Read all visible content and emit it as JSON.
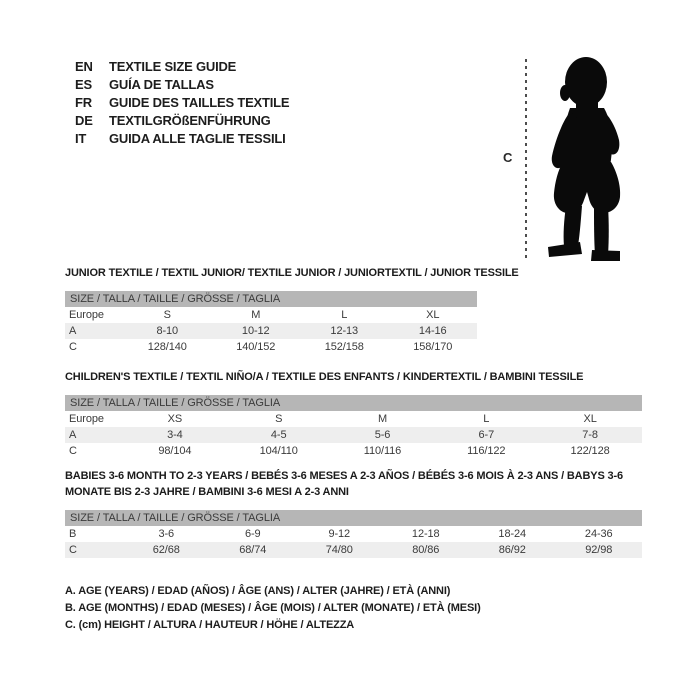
{
  "languages": [
    {
      "code": "EN",
      "label": "TEXTILE SIZE GUIDE"
    },
    {
      "code": "ES",
      "label": "GUÍA DE TALLAS"
    },
    {
      "code": "FR",
      "label": "GUIDE DES TAILLES TEXTILE"
    },
    {
      "code": "DE",
      "label": "TEXTILGRÖßENFÜHRUNG"
    },
    {
      "code": "IT",
      "label": "GUIDA ALLE TAGLIE TESSILI"
    }
  ],
  "figure": {
    "height_label": "C"
  },
  "sections": [
    {
      "title": "JUNIOR TEXTILE / TEXTIL JUNIOR/ TEXTILE JUNIOR / JUNIORTEXTIL / JUNIOR TESSILE",
      "table_header": "SIZE / TALLA / TAILLE / GRÖSSE / TAGLIA",
      "rows": [
        {
          "label": "Europe",
          "values": [
            "S",
            "M",
            "L",
            "XL"
          ],
          "shaded": false
        },
        {
          "label": "A",
          "values": [
            "8-10",
            "10-12",
            "12-13",
            "14-16"
          ],
          "shaded": true
        },
        {
          "label": "C",
          "values": [
            "128/140",
            "140/152",
            "152/158",
            "158/170"
          ],
          "shaded": false
        }
      ]
    },
    {
      "title": "CHILDREN'S TEXTILE / TEXTIL NIÑO/A / TEXTILE DES ENFANTS / KINDERTEXTIL / BAMBINI TESSILE",
      "table_header": "SIZE / TALLA / TAILLE / GRÖSSE / TAGLIA",
      "rows": [
        {
          "label": "Europe",
          "values": [
            "XS",
            "S",
            "M",
            "L",
            "XL"
          ],
          "shaded": false
        },
        {
          "label": "A",
          "values": [
            "3-4",
            "4-5",
            "5-6",
            "6-7",
            "7-8"
          ],
          "shaded": true
        },
        {
          "label": "C",
          "values": [
            "98/104",
            "104/110",
            "110/116",
            "116/122",
            "122/128"
          ],
          "shaded": false
        }
      ]
    },
    {
      "title": "BABIES 3-6 MONTH TO 2-3 YEARS / BEBÉS 3-6 MESES A 2-3 AÑOS / BÉBÉS 3-6 MOIS À 2-3 ANS / BABYS 3-6 MONATE BIS 2-3 JAHRE / BAMBINI 3-6 MESI A 2-3 ANNI",
      "table_header": "SIZE / TALLA / TAILLE / GRÖSSE / TAGLIA",
      "rows": [
        {
          "label": "B",
          "values": [
            "3-6",
            "6-9",
            "9-12",
            "12-18",
            "18-24",
            "24-36"
          ],
          "shaded": false
        },
        {
          "label": "C",
          "values": [
            "62/68",
            "68/74",
            "74/80",
            "80/86",
            "86/92",
            "92/98"
          ],
          "shaded": true
        }
      ]
    }
  ],
  "legend": [
    "A. AGE (YEARS) / EDAD (AÑOS) / ÂGE (ANS) / ALTER (JAHRE) / ETÀ (ANNI)",
    "B. AGE (MONTHS) / EDAD (MESES) / ÂGE (MOIS) / ALTER (MONATE) / ETÀ (MESI)",
    "C. (cm) HEIGHT / ALTURA / HAUTEUR / HÖHE / ALTEZZA"
  ],
  "colors": {
    "header_bar": "#b6b6b6",
    "row_shaded": "#eeeeee",
    "title_text": "#1b1b1b",
    "table_text": "#3b3b3b",
    "silhouette": "#0a0a0a",
    "measure_line": "#4d4d4d"
  }
}
